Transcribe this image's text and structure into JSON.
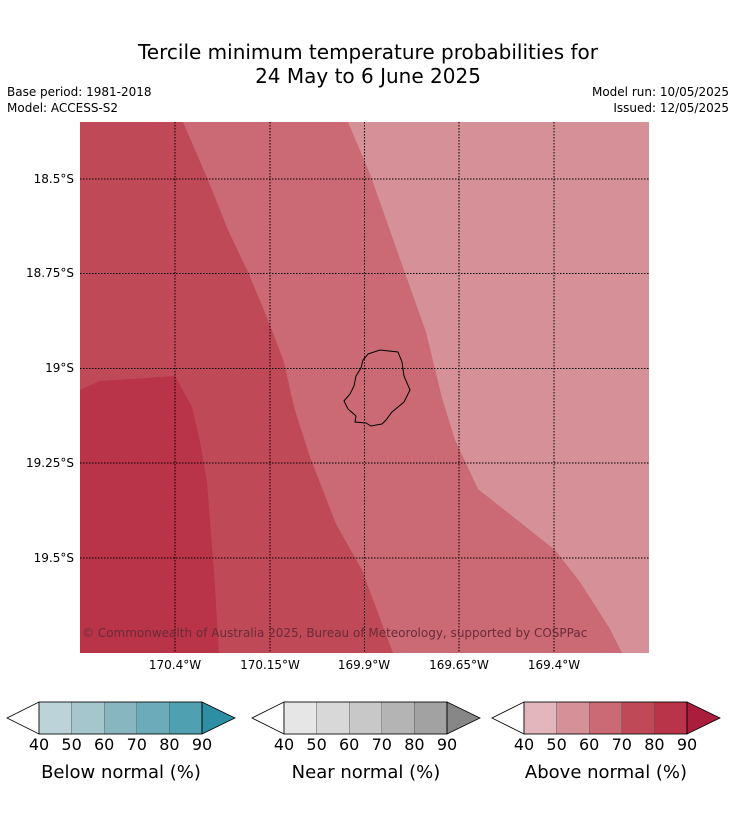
{
  "header": {
    "title_line1": "Tercile minimum temperature probabilities for",
    "title_line2": "24 May to 6 June 2025",
    "base_period": "Base period: 1981-2018",
    "model": "Model: ACCESS-S2",
    "model_run": "Model run: 10/05/2025",
    "issued": "Issued: 12/05/2025"
  },
  "map": {
    "copyright": "© Commonwealth of Australia 2025, Bureau of Meteorology, supported by COSPPac",
    "lat_labels": [
      "18.5°S",
      "18.75°S",
      "19°S",
      "19.25°S",
      "19.5°S"
    ],
    "lon_labels": [
      "170.4°W",
      "170.15°W",
      "169.9°W",
      "169.65°W",
      "169.4°W"
    ],
    "zone_colors": {
      "light": "#d69097",
      "mid": "#cb6a75",
      "dark": "#c04957",
      "darkest": "#b93349"
    }
  },
  "legends": [
    {
      "title": "Below normal (%)",
      "ticks": [
        "40",
        "50",
        "60",
        "70",
        "80",
        "90"
      ],
      "colors": [
        "#bdd3da",
        "#a5c6cc",
        "#88b6c0",
        "#6cacba",
        "#4fa1b1",
        "#2e8ea3"
      ]
    },
    {
      "title": "Near normal (%)",
      "ticks": [
        "40",
        "50",
        "60",
        "70",
        "80",
        "90"
      ],
      "colors": [
        "#e6e6e6",
        "#d8d8d8",
        "#c8c8c8",
        "#b4b4b4",
        "#a2a2a2",
        "#878787"
      ]
    },
    {
      "title": "Above normal (%)",
      "ticks": [
        "40",
        "50",
        "60",
        "70",
        "80",
        "90"
      ],
      "colors": [
        "#e2b6bc",
        "#d69097",
        "#cb6a75",
        "#c04957",
        "#b93349",
        "#aa1d3d"
      ]
    }
  ]
}
